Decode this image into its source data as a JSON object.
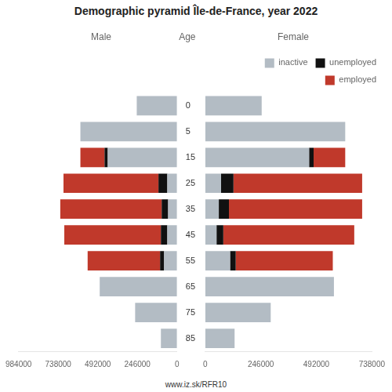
{
  "title": "Demographic pyramid Île-de-France, year 2022",
  "annotations": [
    "www.iz.sk/RFR10"
  ],
  "chart_data": [
    {
      "type": "bar",
      "orientation": "horizontal",
      "stacked": true,
      "title": "Male",
      "ylabel": "Age",
      "categories": [
        85,
        75,
        65,
        55,
        45,
        35,
        25,
        15,
        5,
        0
      ],
      "series": [
        {
          "color": "#b3bcc4",
          "values": [
            100000,
            260000,
            480000,
            80000,
            60000,
            55000,
            60000,
            430000,
            600000,
            250000
          ]
        },
        {
          "color": "#111111",
          "values": [
            0,
            0,
            0,
            25000,
            40000,
            40000,
            55000,
            20000,
            0,
            0
          ]
        },
        {
          "color": "#c0392b",
          "values": [
            0,
            0,
            0,
            450000,
            600000,
            630000,
            590000,
            150000,
            0,
            0
          ]
        }
      ],
      "xlim": [
        984000,
        0
      ],
      "xticks": [
        984000,
        738000,
        492000,
        246000,
        0
      ],
      "grid": false
    },
    {
      "type": "bar",
      "orientation": "horizontal",
      "stacked": true,
      "title": "Female",
      "categories": [
        85,
        75,
        65,
        55,
        45,
        35,
        25,
        15,
        5,
        0
      ],
      "series": [
        {
          "name": "inactive",
          "color": "#b3bcc4",
          "values": [
            130000,
            290000,
            570000,
            110000,
            50000,
            60000,
            70000,
            460000,
            620000,
            250000
          ]
        },
        {
          "name": "unemployed",
          "color": "#111111",
          "values": [
            0,
            0,
            0,
            25000,
            30000,
            45000,
            55000,
            20000,
            0,
            0
          ]
        },
        {
          "name": "employed",
          "color": "#c0392b",
          "values": [
            0,
            0,
            0,
            430000,
            580000,
            590000,
            570000,
            140000,
            0,
            0
          ]
        }
      ],
      "xlim": [
        0,
        738000
      ],
      "xticks": [
        0,
        246000,
        492000,
        738000
      ],
      "grid": false,
      "legend": "upper right",
      "tick_labels": "x"
    }
  ]
}
